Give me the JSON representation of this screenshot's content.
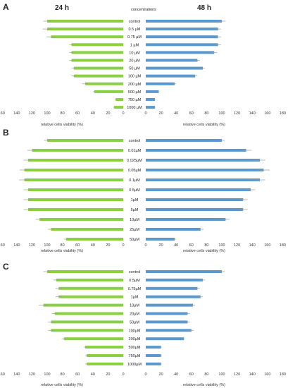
{
  "figure": {
    "header_left": "24 h",
    "header_right": "48 h",
    "header_center": "concentrations",
    "colors": {
      "left_bar": "#8bd042",
      "right_bar": "#5a98cd",
      "error": "#9a9a9a",
      "axis": "#999999"
    }
  },
  "chart_data": [
    {
      "type": "bar",
      "panel": "A",
      "orientation": "horizontal-mirrored",
      "categories": [
        "control",
        "0.5 µM",
        "0.75 µM",
        "1 µM",
        "10 µM",
        "20 µM",
        "50 µM",
        "100 µM",
        "200 µM",
        "500 µM",
        "750 µM",
        "1000 µM"
      ],
      "series": [
        {
          "name": "24 h",
          "values": [
            100,
            100,
            95,
            68,
            68,
            68,
            65,
            65,
            50,
            38,
            10,
            12
          ],
          "errors": [
            5,
            6,
            6,
            3,
            3,
            3,
            3,
            3,
            4,
            2,
            1,
            1
          ]
        },
        {
          "name": "48 h",
          "values": [
            100,
            95,
            95,
            95,
            90,
            68,
            75,
            65,
            38,
            17,
            12,
            12
          ],
          "errors": [
            5,
            4,
            4,
            4,
            4,
            3,
            3,
            3,
            2,
            1,
            1,
            1
          ]
        }
      ],
      "xlabel": "relative cells viability (%)",
      "xticks": [
        180,
        160,
        140,
        120,
        100,
        80,
        60,
        40,
        20,
        0
      ],
      "xlim": [
        0,
        180
      ]
    },
    {
      "type": "bar",
      "panel": "B",
      "orientation": "horizontal-mirrored",
      "categories": [
        "control",
        "0.01µM",
        "0.025µM",
        "0.05µM",
        "0.1µM",
        "0.5µM",
        "1µM",
        "5µM",
        "10µM",
        "25µM",
        "50µM"
      ],
      "series": [
        {
          "name": "24 h",
          "values": [
            100,
            120,
            125,
            130,
            130,
            125,
            125,
            125,
            110,
            95,
            75
          ],
          "errors": [
            4,
            6,
            6,
            6,
            7,
            6,
            6,
            6,
            5,
            4,
            3
          ]
        },
        {
          "name": "48 h",
          "values": [
            100,
            132,
            150,
            155,
            150,
            138,
            128,
            128,
            105,
            72,
            38
          ],
          "errors": [
            4,
            7,
            7,
            8,
            7,
            6,
            6,
            6,
            5,
            4,
            2
          ]
        }
      ],
      "xlabel": "relative cells viability (%)",
      "xticks": [
        180,
        160,
        140,
        120,
        100,
        80,
        60,
        40,
        20,
        0
      ],
      "xlim": [
        0,
        180
      ]
    },
    {
      "type": "bar",
      "panel": "C",
      "orientation": "horizontal-mirrored",
      "categories": [
        "control",
        "0.5µM",
        "0.75µM",
        "1µM",
        "10µM",
        "20µM",
        "50µM",
        "100µM",
        "200µM",
        "500µM",
        "750µM",
        "1000µM"
      ],
      "series": [
        {
          "name": "24 h",
          "values": [
            100,
            88,
            85,
            85,
            105,
            90,
            95,
            95,
            78,
            50,
            48,
            48
          ],
          "errors": [
            5,
            4,
            4,
            4,
            6,
            4,
            4,
            4,
            3,
            2,
            2,
            2
          ]
        },
        {
          "name": "48 h",
          "values": [
            100,
            75,
            68,
            72,
            62,
            55,
            55,
            60,
            50,
            20,
            20,
            20
          ],
          "errors": [
            4,
            3,
            3,
            3,
            3,
            3,
            3,
            3,
            2,
            1,
            1,
            1
          ]
        }
      ],
      "xlabel": "relative cells viability (%)",
      "xticks": [
        180,
        160,
        140,
        120,
        100,
        80,
        60,
        40,
        20,
        0
      ],
      "xlim": [
        0,
        180
      ]
    }
  ]
}
